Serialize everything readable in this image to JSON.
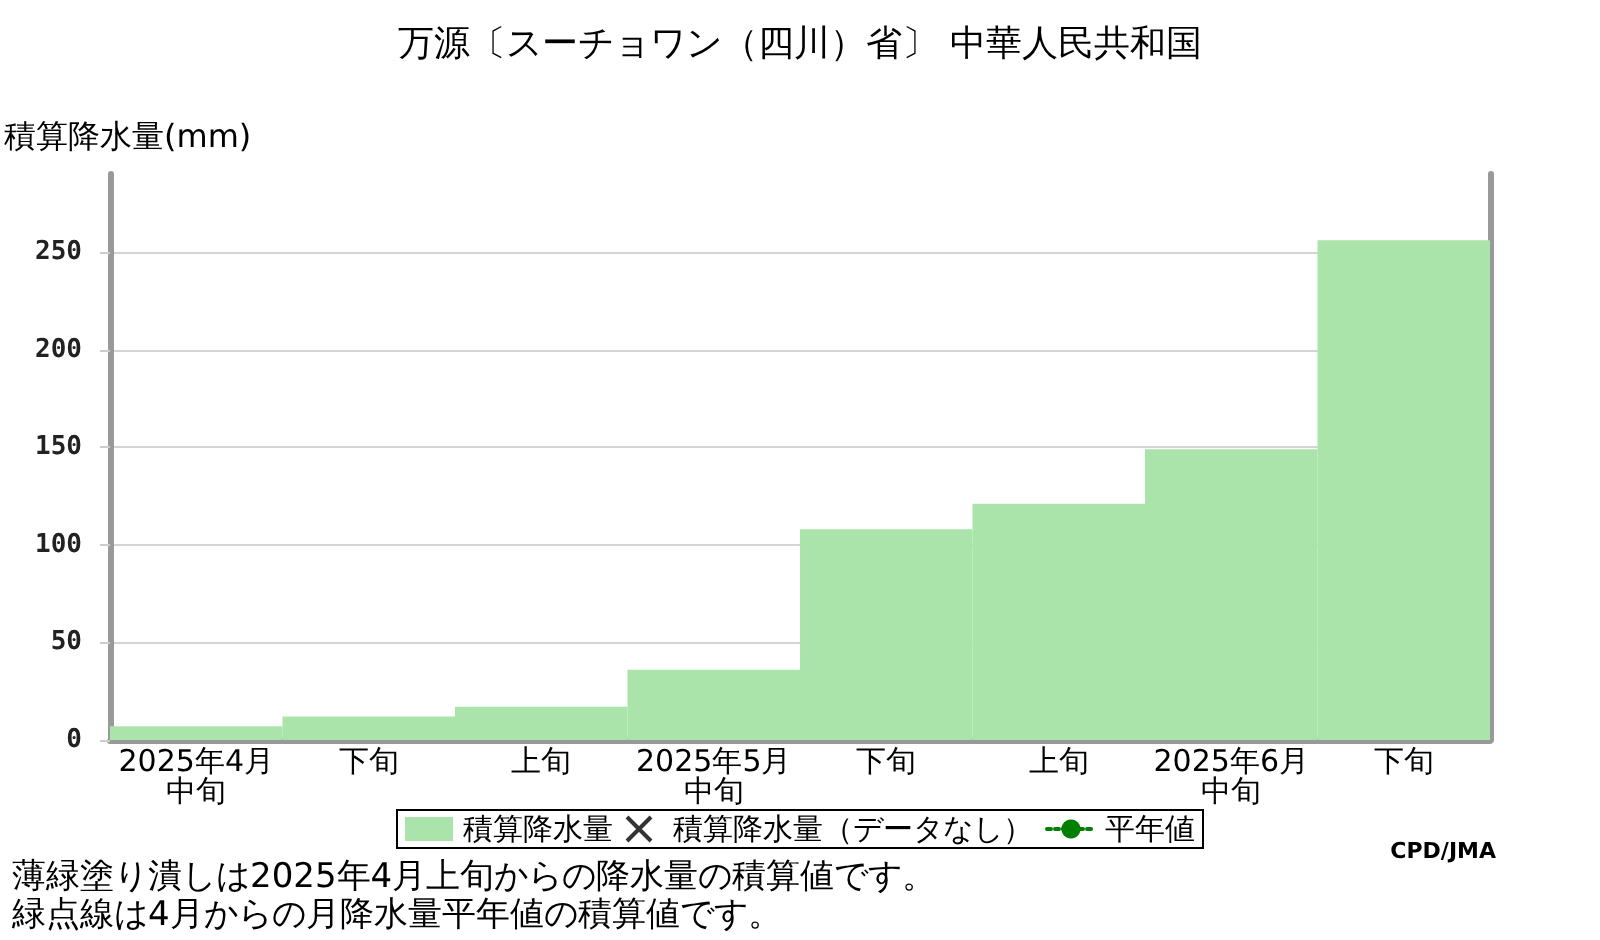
{
  "chart_data": {
    "type": "bar",
    "title": "万源〔スーチョワン（四川）省〕 中華人民共和国",
    "ylabel": "積算降水量(mm)",
    "categories": [
      "2025年4月中旬",
      "下旬",
      "上旬",
      "2025年5月中旬",
      "下旬",
      "上旬",
      "2025年6月中旬",
      "下旬"
    ],
    "series": [
      {
        "name": "積算降水量",
        "color": "#aae4aa",
        "values": [
          7,
          12,
          17,
          36,
          108,
          121,
          149,
          256
        ]
      },
      {
        "name": "積算降水量（データなし）",
        "type": "scatter",
        "marker": "cross",
        "color": "#000000",
        "values": [
          null,
          null,
          null,
          null,
          null,
          null,
          null,
          null
        ]
      },
      {
        "name": "平年値",
        "type": "line",
        "line_style": "dotted",
        "color": "#008000",
        "values": [
          null,
          null,
          null,
          null,
          null,
          null,
          null,
          null
        ]
      }
    ],
    "ylim": [
      0,
      290
    ],
    "yticks": [
      0,
      50,
      100,
      150,
      200,
      250
    ],
    "grid": "y",
    "legend": "bottom",
    "annotations": [
      "CPD/JMA",
      "薄緑塗り潰しは2025年4月上旬からの降水量の積算値です。",
      "緑点線は4月からの月降水量平年値の積算値です。"
    ]
  }
}
